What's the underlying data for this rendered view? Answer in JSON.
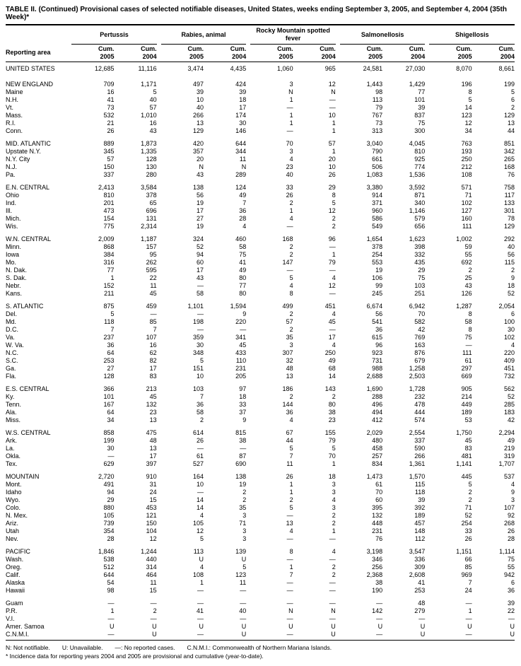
{
  "title": "TABLE II. (Continued) Provisional cases of selected notifiable diseases, United States, weeks ending September 3, 2005, and September 4, 2004 (35th Week)*",
  "column_groups": [
    "Pertussis",
    "Rabies, animal",
    "Rocky Mountain spotted fever",
    "Salmonellosis",
    "Shigellosis"
  ],
  "sub_headers": {
    "cum05": "Cum. 2005",
    "cum04": "Cum. 2004",
    "reporting": "Reporting area"
  },
  "sections": [
    {
      "rows": [
        [
          "UNITED STATES",
          "12,685",
          "11,116",
          "3,474",
          "4,435",
          "1,060",
          "965",
          "24,581",
          "27,030",
          "8,070",
          "8,661"
        ]
      ]
    },
    {
      "rows": [
        [
          "NEW ENGLAND",
          "709",
          "1,171",
          "497",
          "424",
          "3",
          "12",
          "1,443",
          "1,429",
          "196",
          "199"
        ],
        [
          "Maine",
          "16",
          "5",
          "39",
          "39",
          "N",
          "N",
          "98",
          "77",
          "8",
          "5"
        ],
        [
          "N.H.",
          "41",
          "40",
          "10",
          "18",
          "1",
          "—",
          "113",
          "101",
          "5",
          "6"
        ],
        [
          "Vt.",
          "73",
          "57",
          "40",
          "17",
          "—",
          "—",
          "79",
          "39",
          "14",
          "2"
        ],
        [
          "Mass.",
          "532",
          "1,010",
          "266",
          "174",
          "1",
          "10",
          "767",
          "837",
          "123",
          "129"
        ],
        [
          "R.I.",
          "21",
          "16",
          "13",
          "30",
          "1",
          "1",
          "73",
          "75",
          "12",
          "13"
        ],
        [
          "Conn.",
          "26",
          "43",
          "129",
          "146",
          "—",
          "1",
          "313",
          "300",
          "34",
          "44"
        ]
      ]
    },
    {
      "rows": [
        [
          "MID. ATLANTIC",
          "889",
          "1,873",
          "420",
          "644",
          "70",
          "57",
          "3,040",
          "4,045",
          "763",
          "851"
        ],
        [
          "Upstate N.Y.",
          "345",
          "1,335",
          "357",
          "344",
          "3",
          "1",
          "790",
          "810",
          "193",
          "342"
        ],
        [
          "N.Y. City",
          "57",
          "128",
          "20",
          "11",
          "4",
          "20",
          "661",
          "925",
          "250",
          "265"
        ],
        [
          "N.J.",
          "150",
          "130",
          "N",
          "N",
          "23",
          "10",
          "506",
          "774",
          "212",
          "168"
        ],
        [
          "Pa.",
          "337",
          "280",
          "43",
          "289",
          "40",
          "26",
          "1,083",
          "1,536",
          "108",
          "76"
        ]
      ]
    },
    {
      "rows": [
        [
          "E.N. CENTRAL",
          "2,413",
          "3,584",
          "138",
          "124",
          "33",
          "29",
          "3,380",
          "3,592",
          "571",
          "758"
        ],
        [
          "Ohio",
          "810",
          "378",
          "56",
          "49",
          "26",
          "8",
          "914",
          "871",
          "71",
          "117"
        ],
        [
          "Ind.",
          "201",
          "65",
          "19",
          "7",
          "2",
          "5",
          "371",
          "340",
          "102",
          "133"
        ],
        [
          "Ill.",
          "473",
          "696",
          "17",
          "36",
          "1",
          "12",
          "960",
          "1,146",
          "127",
          "301"
        ],
        [
          "Mich.",
          "154",
          "131",
          "27",
          "28",
          "4",
          "2",
          "586",
          "579",
          "160",
          "78"
        ],
        [
          "Wis.",
          "775",
          "2,314",
          "19",
          "4",
          "—",
          "2",
          "549",
          "656",
          "111",
          "129"
        ]
      ]
    },
    {
      "rows": [
        [
          "W.N. CENTRAL",
          "2,009",
          "1,187",
          "324",
          "460",
          "168",
          "96",
          "1,654",
          "1,623",
          "1,002",
          "292"
        ],
        [
          "Minn.",
          "868",
          "157",
          "52",
          "58",
          "2",
          "—",
          "378",
          "398",
          "59",
          "40"
        ],
        [
          "Iowa",
          "384",
          "95",
          "94",
          "75",
          "2",
          "1",
          "254",
          "332",
          "55",
          "56"
        ],
        [
          "Mo.",
          "316",
          "262",
          "60",
          "41",
          "147",
          "79",
          "553",
          "435",
          "692",
          "115"
        ],
        [
          "N. Dak.",
          "77",
          "595",
          "17",
          "49",
          "—",
          "—",
          "19",
          "29",
          "2",
          "2"
        ],
        [
          "S. Dak.",
          "1",
          "22",
          "43",
          "80",
          "5",
          "4",
          "106",
          "75",
          "25",
          "9"
        ],
        [
          "Nebr.",
          "152",
          "11",
          "—",
          "77",
          "4",
          "12",
          "99",
          "103",
          "43",
          "18"
        ],
        [
          "Kans.",
          "211",
          "45",
          "58",
          "80",
          "8",
          "—",
          "245",
          "251",
          "126",
          "52"
        ]
      ]
    },
    {
      "rows": [
        [
          "S. ATLANTIC",
          "875",
          "459",
          "1,101",
          "1,594",
          "499",
          "451",
          "6,674",
          "6,942",
          "1,287",
          "2,054"
        ],
        [
          "Del.",
          "5",
          "—",
          "—",
          "9",
          "2",
          "4",
          "56",
          "70",
          "8",
          "6"
        ],
        [
          "Md.",
          "118",
          "85",
          "198",
          "220",
          "57",
          "45",
          "541",
          "582",
          "58",
          "100"
        ],
        [
          "D.C.",
          "7",
          "7",
          "—",
          "—",
          "2",
          "—",
          "36",
          "42",
          "8",
          "30"
        ],
        [
          "Va.",
          "237",
          "107",
          "359",
          "341",
          "35",
          "17",
          "615",
          "769",
          "75",
          "102"
        ],
        [
          "W. Va.",
          "36",
          "16",
          "30",
          "45",
          "3",
          "4",
          "96",
          "163",
          "—",
          "4"
        ],
        [
          "N.C.",
          "64",
          "62",
          "348",
          "433",
          "307",
          "250",
          "923",
          "876",
          "111",
          "220"
        ],
        [
          "S.C.",
          "253",
          "82",
          "5",
          "110",
          "32",
          "49",
          "731",
          "679",
          "61",
          "409"
        ],
        [
          "Ga.",
          "27",
          "17",
          "151",
          "231",
          "48",
          "68",
          "988",
          "1,258",
          "297",
          "451"
        ],
        [
          "Fla.",
          "128",
          "83",
          "10",
          "205",
          "13",
          "14",
          "2,688",
          "2,503",
          "669",
          "732"
        ]
      ]
    },
    {
      "rows": [
        [
          "E.S. CENTRAL",
          "366",
          "213",
          "103",
          "97",
          "186",
          "143",
          "1,690",
          "1,728",
          "905",
          "562"
        ],
        [
          "Ky.",
          "101",
          "45",
          "7",
          "18",
          "2",
          "2",
          "288",
          "232",
          "214",
          "52"
        ],
        [
          "Tenn.",
          "167",
          "132",
          "36",
          "33",
          "144",
          "80",
          "496",
          "478",
          "449",
          "285"
        ],
        [
          "Ala.",
          "64",
          "23",
          "58",
          "37",
          "36",
          "38",
          "494",
          "444",
          "189",
          "183"
        ],
        [
          "Miss.",
          "34",
          "13",
          "2",
          "9",
          "4",
          "23",
          "412",
          "574",
          "53",
          "42"
        ]
      ]
    },
    {
      "rows": [
        [
          "W.S. CENTRAL",
          "858",
          "475",
          "614",
          "815",
          "67",
          "155",
          "2,029",
          "2,554",
          "1,750",
          "2,294"
        ],
        [
          "Ark.",
          "199",
          "48",
          "26",
          "38",
          "44",
          "79",
          "480",
          "337",
          "45",
          "49"
        ],
        [
          "La.",
          "30",
          "13",
          "—",
          "—",
          "5",
          "5",
          "458",
          "590",
          "83",
          "219"
        ],
        [
          "Okla.",
          "—",
          "17",
          "61",
          "87",
          "7",
          "70",
          "257",
          "266",
          "481",
          "319"
        ],
        [
          "Tex.",
          "629",
          "397",
          "527",
          "690",
          "11",
          "1",
          "834",
          "1,361",
          "1,141",
          "1,707"
        ]
      ]
    },
    {
      "rows": [
        [
          "MOUNTAIN",
          "2,720",
          "910",
          "164",
          "138",
          "26",
          "18",
          "1,473",
          "1,570",
          "445",
          "537"
        ],
        [
          "Mont.",
          "491",
          "31",
          "10",
          "19",
          "1",
          "3",
          "61",
          "115",
          "5",
          "4"
        ],
        [
          "Idaho",
          "94",
          "24",
          "—",
          "2",
          "1",
          "3",
          "70",
          "118",
          "2",
          "9"
        ],
        [
          "Wyo.",
          "29",
          "15",
          "14",
          "2",
          "2",
          "4",
          "60",
          "39",
          "2",
          "3"
        ],
        [
          "Colo.",
          "880",
          "453",
          "14",
          "35",
          "5",
          "3",
          "395",
          "392",
          "71",
          "107"
        ],
        [
          "N. Mex.",
          "105",
          "121",
          "4",
          "3",
          "—",
          "2",
          "132",
          "189",
          "52",
          "92"
        ],
        [
          "Ariz.",
          "739",
          "150",
          "105",
          "71",
          "13",
          "2",
          "448",
          "457",
          "254",
          "268"
        ],
        [
          "Utah",
          "354",
          "104",
          "12",
          "3",
          "4",
          "1",
          "231",
          "148",
          "33",
          "26"
        ],
        [
          "Nev.",
          "28",
          "12",
          "5",
          "3",
          "—",
          "—",
          "76",
          "112",
          "26",
          "28"
        ]
      ]
    },
    {
      "rows": [
        [
          "PACIFIC",
          "1,846",
          "1,244",
          "113",
          "139",
          "8",
          "4",
          "3,198",
          "3,547",
          "1,151",
          "1,114"
        ],
        [
          "Wash.",
          "538",
          "440",
          "U",
          "U",
          "—",
          "—",
          "346",
          "336",
          "66",
          "75"
        ],
        [
          "Oreg.",
          "512",
          "314",
          "4",
          "5",
          "1",
          "2",
          "256",
          "309",
          "85",
          "55"
        ],
        [
          "Calif.",
          "644",
          "464",
          "108",
          "123",
          "7",
          "2",
          "2,368",
          "2,608",
          "969",
          "942"
        ],
        [
          "Alaska",
          "54",
          "11",
          "1",
          "11",
          "—",
          "—",
          "38",
          "41",
          "7",
          "6"
        ],
        [
          "Hawaii",
          "98",
          "15",
          "—",
          "—",
          "—",
          "—",
          "190",
          "253",
          "24",
          "36"
        ]
      ]
    },
    {
      "rows": [
        [
          "Guam",
          "—",
          "—",
          "—",
          "—",
          "—",
          "—",
          "—",
          "48",
          "—",
          "39"
        ],
        [
          "P.R.",
          "1",
          "2",
          "41",
          "40",
          "N",
          "N",
          "142",
          "279",
          "1",
          "22"
        ],
        [
          "V.I.",
          "—",
          "—",
          "—",
          "—",
          "—",
          "—",
          "—",
          "—",
          "—",
          "—"
        ],
        [
          "Amer. Samoa",
          "U",
          "U",
          "U",
          "U",
          "U",
          "U",
          "U",
          "U",
          "U",
          "U"
        ],
        [
          "C.N.M.I.",
          "—",
          "U",
          "—",
          "U",
          "—",
          "U",
          "—",
          "U",
          "—",
          "U"
        ]
      ]
    }
  ],
  "footnote_line1": "N: Not notifiable.  U: Unavailable.  —: No reported cases.  C.N.M.I.: Commonwealth of Northern Mariana Islands.",
  "footnote_line2": "* Incidence data for reporting years 2004 and 2005 are provisional and cumulative (year-to-date)."
}
